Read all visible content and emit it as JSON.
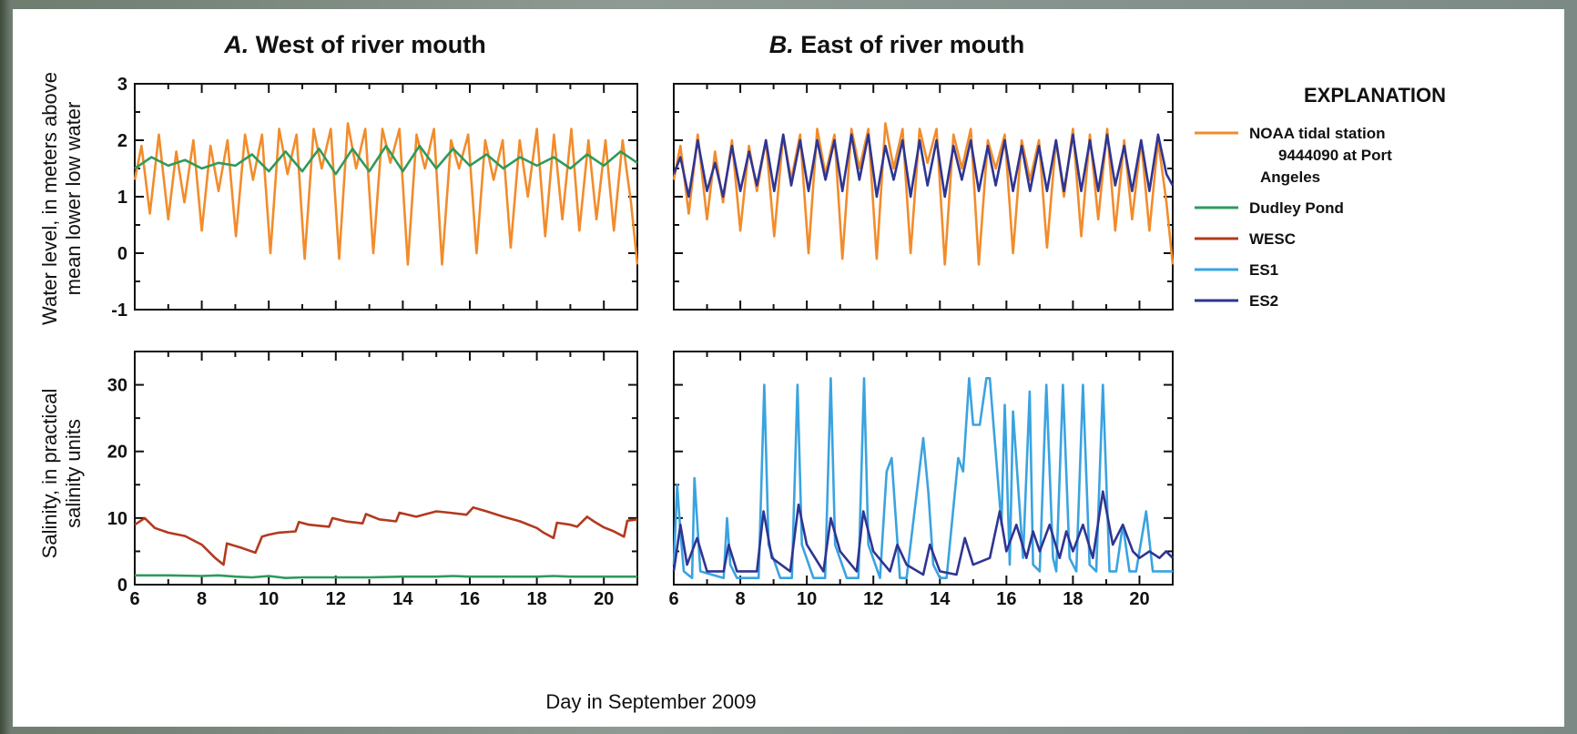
{
  "colors": {
    "noaa": "#f28c2b",
    "dudley": "#2f9a5c",
    "wesc": "#b33a1e",
    "es1": "#3aa3e0",
    "es2": "#2e3592"
  },
  "panels": {
    "a_letter": "A.",
    "a_title": " West of river mouth",
    "b_letter": "B.",
    "b_title": " East of river mouth"
  },
  "axes": {
    "water_ylabel_line1": "Water level, in meters above",
    "water_ylabel_line2": "mean lower low water",
    "salinity_ylabel_line1": "Salinity, in practical",
    "salinity_ylabel_line2": "salinity units",
    "xlabel": "Day in September 2009",
    "water_ticks": [
      "3",
      "2",
      "1",
      "0",
      "-1"
    ],
    "salinity_ticks": [
      "30",
      "20",
      "10",
      "0"
    ],
    "x_ticks": [
      "6",
      "8",
      "10",
      "12",
      "14",
      "16",
      "18",
      "20"
    ]
  },
  "legend": {
    "title": "EXPLANATION",
    "items": [
      {
        "key": "noaa",
        "lines": [
          "NOAA tidal station",
          "9444090 at Port",
          "Angeles"
        ]
      },
      {
        "key": "dudley",
        "lines": [
          "Dudley Pond"
        ]
      },
      {
        "key": "wesc",
        "lines": [
          "WESC"
        ]
      },
      {
        "key": "es1",
        "lines": [
          "ES1"
        ]
      },
      {
        "key": "es2",
        "lines": [
          "ES2"
        ]
      }
    ]
  },
  "chart_data": [
    {
      "panel": "A. West of river mouth — water level",
      "type": "line",
      "xlim": [
        6,
        21
      ],
      "ylim": [
        -1,
        3
      ],
      "ylabel": "Water level, in meters above mean lower low water",
      "series": [
        {
          "name": "NOAA tidal station 9444090 at Port Angeles",
          "x": [
            6.0,
            6.2,
            6.45,
            6.72,
            7.0,
            7.24,
            7.48,
            7.75,
            8.0,
            8.26,
            8.5,
            8.77,
            9.02,
            9.29,
            9.53,
            9.8,
            10.05,
            10.31,
            10.56,
            10.83,
            11.07,
            11.34,
            11.58,
            11.85,
            12.1,
            12.36,
            12.61,
            12.88,
            13.12,
            13.39,
            13.63,
            13.9,
            14.15,
            14.41,
            14.66,
            14.93,
            15.17,
            15.44,
            15.68,
            15.95,
            16.2,
            16.46,
            16.71,
            16.98,
            17.22,
            17.49,
            17.73,
            18.0,
            18.25,
            18.51,
            18.76,
            19.03,
            19.27,
            19.54,
            19.78,
            20.05,
            20.3,
            20.56,
            20.81,
            21.0
          ],
          "y": [
            1.3,
            1.9,
            0.7,
            2.1,
            0.6,
            1.8,
            0.9,
            2.0,
            0.4,
            1.9,
            1.1,
            2.0,
            0.3,
            2.1,
            1.3,
            2.1,
            0.0,
            2.2,
            1.4,
            2.1,
            -0.1,
            2.2,
            1.5,
            2.2,
            -0.1,
            2.3,
            1.5,
            2.2,
            0.0,
            2.2,
            1.6,
            2.2,
            -0.2,
            2.1,
            1.5,
            2.2,
            -0.2,
            2.0,
            1.5,
            2.1,
            0.0,
            2.0,
            1.3,
            2.0,
            0.1,
            2.0,
            1.0,
            2.2,
            0.3,
            2.1,
            0.6,
            2.2,
            0.4,
            2.0,
            0.6,
            2.0,
            0.4,
            2.0,
            0.9,
            -0.2
          ]
        },
        {
          "name": "Dudley Pond",
          "x": [
            6.0,
            6.5,
            7.0,
            7.5,
            8.0,
            8.5,
            9.0,
            9.5,
            10.0,
            10.5,
            11.0,
            11.5,
            12.0,
            12.5,
            13.0,
            13.5,
            14.0,
            14.5,
            15.0,
            15.5,
            16.0,
            16.5,
            17.0,
            17.5,
            18.0,
            18.5,
            19.0,
            19.5,
            20.0,
            20.5,
            21.0
          ],
          "y": [
            1.5,
            1.7,
            1.55,
            1.65,
            1.5,
            1.6,
            1.55,
            1.75,
            1.45,
            1.8,
            1.45,
            1.85,
            1.4,
            1.85,
            1.45,
            1.9,
            1.45,
            1.9,
            1.5,
            1.85,
            1.55,
            1.75,
            1.5,
            1.7,
            1.55,
            1.7,
            1.5,
            1.75,
            1.55,
            1.8,
            1.6
          ]
        }
      ]
    },
    {
      "panel": "B. East of river mouth — water level",
      "type": "line",
      "xlim": [
        6,
        21
      ],
      "ylim": [
        -1,
        3
      ],
      "series": [
        {
          "name": "NOAA tidal station 9444090 at Port Angeles",
          "x": [
            6.0,
            6.2,
            6.45,
            6.72,
            7.0,
            7.24,
            7.48,
            7.75,
            8.0,
            8.26,
            8.5,
            8.77,
            9.02,
            9.29,
            9.53,
            9.8,
            10.05,
            10.31,
            10.56,
            10.83,
            11.07,
            11.34,
            11.58,
            11.85,
            12.1,
            12.36,
            12.61,
            12.88,
            13.12,
            13.39,
            13.63,
            13.9,
            14.15,
            14.41,
            14.66,
            14.93,
            15.17,
            15.44,
            15.68,
            15.95,
            16.2,
            16.46,
            16.71,
            16.98,
            17.22,
            17.49,
            17.73,
            18.0,
            18.25,
            18.51,
            18.76,
            19.03,
            19.27,
            19.54,
            19.78,
            20.05,
            20.3,
            20.56,
            20.81,
            21.0
          ],
          "y": [
            1.3,
            1.9,
            0.7,
            2.1,
            0.6,
            1.8,
            0.9,
            2.0,
            0.4,
            1.9,
            1.1,
            2.0,
            0.3,
            2.1,
            1.3,
            2.1,
            0.0,
            2.2,
            1.4,
            2.1,
            -0.1,
            2.2,
            1.5,
            2.2,
            -0.1,
            2.3,
            1.5,
            2.2,
            0.0,
            2.2,
            1.6,
            2.2,
            -0.2,
            2.1,
            1.5,
            2.2,
            -0.2,
            2.0,
            1.5,
            2.1,
            0.0,
            2.0,
            1.3,
            2.0,
            0.1,
            2.0,
            1.0,
            2.2,
            0.3,
            2.1,
            0.6,
            2.2,
            0.4,
            2.0,
            0.6,
            2.0,
            0.4,
            2.0,
            0.9,
            -0.2
          ]
        },
        {
          "name": "ES2",
          "x": [
            6.0,
            6.2,
            6.45,
            6.72,
            7.0,
            7.24,
            7.48,
            7.75,
            8.0,
            8.26,
            8.5,
            8.77,
            9.02,
            9.29,
            9.53,
            9.8,
            10.05,
            10.31,
            10.56,
            10.83,
            11.07,
            11.34,
            11.58,
            11.85,
            12.1,
            12.36,
            12.61,
            12.88,
            13.12,
            13.39,
            13.63,
            13.9,
            14.15,
            14.41,
            14.66,
            14.93,
            15.17,
            15.44,
            15.68,
            15.95,
            16.2,
            16.46,
            16.71,
            16.98,
            17.22,
            17.49,
            17.73,
            18.0,
            18.25,
            18.51,
            18.76,
            19.03,
            19.27,
            19.54,
            19.78,
            20.05,
            20.3,
            20.56,
            20.81,
            21.0
          ],
          "y": [
            1.4,
            1.7,
            1.0,
            2.0,
            1.1,
            1.6,
            1.0,
            1.9,
            1.1,
            1.8,
            1.2,
            2.0,
            1.1,
            2.1,
            1.2,
            2.0,
            1.1,
            2.0,
            1.3,
            2.0,
            1.1,
            2.1,
            1.3,
            2.1,
            1.0,
            1.9,
            1.3,
            2.0,
            1.0,
            2.0,
            1.2,
            2.0,
            1.0,
            1.9,
            1.3,
            2.0,
            1.1,
            1.9,
            1.2,
            2.0,
            1.1,
            1.9,
            1.1,
            1.9,
            1.1,
            2.0,
            1.1,
            2.1,
            1.1,
            2.0,
            1.1,
            2.1,
            1.2,
            1.9,
            1.1,
            2.0,
            1.1,
            2.1,
            1.4,
            1.2
          ]
        }
      ]
    },
    {
      "panel": "A. West of river mouth — salinity",
      "type": "line",
      "xlim": [
        6,
        21
      ],
      "ylim": [
        0,
        35
      ],
      "ylabel": "Salinity, in practical salinity units",
      "xlabel": "Day in September 2009",
      "series": [
        {
          "name": "WESC",
          "x": [
            6.0,
            6.3,
            6.6,
            7.0,
            7.5,
            8.0,
            8.4,
            8.65,
            8.75,
            9.2,
            9.6,
            9.8,
            10.0,
            10.3,
            10.8,
            10.9,
            11.2,
            11.8,
            11.9,
            12.3,
            12.8,
            12.9,
            13.3,
            13.8,
            13.9,
            14.4,
            15.0,
            15.4,
            15.9,
            16.1,
            16.5,
            17.0,
            17.5,
            18.0,
            18.2,
            18.5,
            18.6,
            19.0,
            19.2,
            19.5,
            19.7,
            20.0,
            20.3,
            20.6,
            20.7,
            21.0
          ],
          "y": [
            9.0,
            10.0,
            8.5,
            7.8,
            7.3,
            6.0,
            4.0,
            3.0,
            6.2,
            5.5,
            4.8,
            7.2,
            7.5,
            7.8,
            8.0,
            9.4,
            9.0,
            8.7,
            10.0,
            9.5,
            9.2,
            10.6,
            9.8,
            9.5,
            10.8,
            10.2,
            11.0,
            10.8,
            10.5,
            11.6,
            11.0,
            10.2,
            9.5,
            8.5,
            7.8,
            7.0,
            9.3,
            9.0,
            8.7,
            10.2,
            9.5,
            8.6,
            8.0,
            7.2,
            9.6,
            9.8
          ]
        },
        {
          "name": "Dudley Pond",
          "x": [
            6.0,
            7.0,
            8.0,
            8.5,
            9.0,
            9.5,
            10.0,
            10.5,
            11.0,
            12.0,
            13.0,
            14.0,
            15.0,
            15.5,
            16.0,
            17.0,
            18.0,
            18.5,
            19.0,
            20.0,
            21.0
          ],
          "y": [
            1.4,
            1.4,
            1.3,
            1.4,
            1.2,
            1.1,
            1.3,
            1.0,
            1.1,
            1.1,
            1.1,
            1.2,
            1.2,
            1.3,
            1.2,
            1.2,
            1.2,
            1.3,
            1.2,
            1.2,
            1.2
          ]
        }
      ]
    },
    {
      "panel": "B. East of river mouth — salinity",
      "type": "line",
      "xlim": [
        6,
        21
      ],
      "ylim": [
        0,
        35
      ],
      "series": [
        {
          "name": "ES1",
          "x": [
            6.0,
            6.1,
            6.2,
            6.3,
            6.55,
            6.62,
            6.8,
            7.5,
            7.6,
            7.7,
            7.9,
            8.55,
            8.72,
            8.85,
            9.2,
            9.55,
            9.72,
            9.85,
            10.2,
            10.55,
            10.72,
            10.85,
            11.2,
            11.55,
            11.72,
            11.85,
            12.2,
            12.4,
            12.55,
            12.7,
            12.8,
            13.0,
            13.5,
            13.65,
            13.8,
            14.0,
            14.2,
            14.55,
            14.7,
            14.88,
            15.0,
            15.2,
            15.4,
            15.5,
            15.85,
            15.95,
            16.1,
            16.2,
            16.5,
            16.7,
            16.8,
            17.0,
            17.2,
            17.4,
            17.5,
            17.7,
            17.9,
            18.1,
            18.3,
            18.5,
            18.7,
            18.9,
            19.1,
            19.3,
            19.5,
            19.7,
            19.9,
            20.2,
            20.4,
            20.5,
            20.6,
            20.8,
            21.0
          ],
          "y": [
            3.0,
            15.0,
            8.0,
            2.0,
            1.0,
            16.0,
            2.0,
            1.0,
            10.0,
            3.0,
            1.0,
            1.0,
            30.0,
            6.0,
            1.0,
            1.0,
            30.0,
            6.0,
            1.0,
            1.0,
            31.0,
            6.0,
            1.0,
            1.0,
            31.0,
            6.0,
            1.0,
            17.0,
            19.0,
            8.0,
            1.0,
            1.0,
            22.0,
            14.0,
            3.0,
            1.0,
            1.0,
            19.0,
            17.0,
            31.0,
            24.0,
            24.0,
            31.0,
            31.0,
            9.0,
            27.0,
            3.0,
            26.0,
            4.0,
            29.0,
            3.0,
            2.0,
            30.0,
            4.0,
            2.0,
            30.0,
            4.0,
            2.0,
            30.0,
            3.0,
            2.0,
            30.0,
            2.0,
            2.0,
            9.0,
            2.0,
            2.0,
            11.0,
            2.0,
            2.0,
            2.0,
            2.0,
            2.0
          ]
        },
        {
          "name": "ES2",
          "x": [
            6.0,
            6.2,
            6.4,
            6.7,
            7.0,
            7.5,
            7.65,
            7.9,
            8.5,
            8.7,
            8.95,
            9.5,
            9.75,
            10.0,
            10.5,
            10.72,
            11.0,
            11.5,
            11.7,
            12.0,
            12.5,
            12.72,
            13.0,
            13.5,
            13.7,
            14.0,
            14.5,
            14.75,
            15.0,
            15.5,
            15.8,
            16.0,
            16.3,
            16.6,
            16.8,
            17.0,
            17.3,
            17.6,
            17.8,
            18.0,
            18.3,
            18.6,
            18.9,
            19.2,
            19.5,
            19.8,
            20.0,
            20.3,
            20.6,
            20.8,
            21.0
          ],
          "y": [
            2.0,
            9.0,
            3.0,
            7.0,
            2.0,
            2.0,
            6.0,
            2.0,
            2.0,
            11.0,
            4.0,
            2.0,
            12.0,
            6.0,
            2.0,
            10.0,
            5.0,
            2.0,
            11.0,
            5.0,
            2.0,
            6.0,
            3.0,
            1.5,
            6.0,
            2.0,
            1.5,
            7.0,
            3.0,
            4.0,
            11.0,
            5.0,
            9.0,
            4.0,
            8.0,
            5.0,
            9.0,
            4.0,
            8.0,
            5.0,
            9.0,
            4.0,
            14.0,
            6.0,
            9.0,
            5.0,
            4.0,
            5.0,
            4.0,
            5.0,
            4.0
          ]
        }
      ]
    }
  ]
}
